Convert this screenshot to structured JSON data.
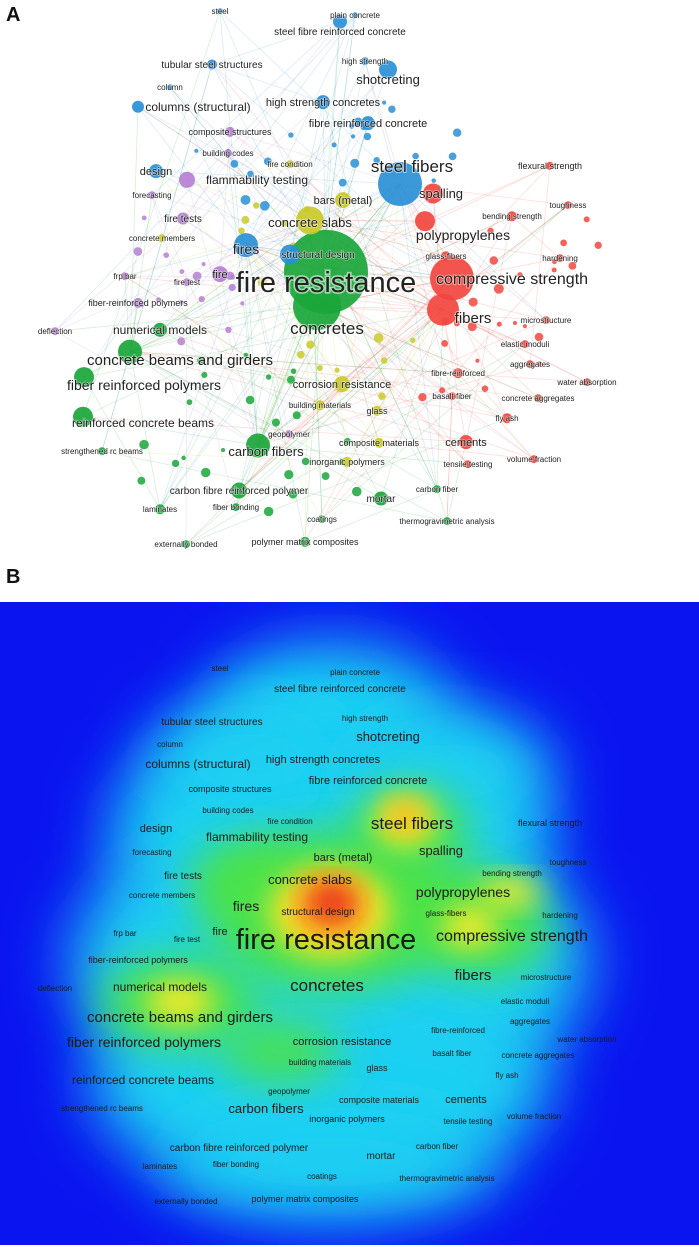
{
  "panels": {
    "a": "A",
    "b": "B"
  },
  "colors": {
    "blue": "#2a8fd6",
    "red": "#f2473f",
    "green": "#1aa63a",
    "yellow": "#c9c92a",
    "purple": "#b57fd1",
    "heat_background": "#0a14f0"
  },
  "terms": [
    {
      "label": "steel",
      "cluster": "blue"
    },
    {
      "label": "plain concrete",
      "cluster": "blue"
    },
    {
      "label": "steel fibre reinforced concrete",
      "cluster": "blue"
    },
    {
      "label": "tubular steel structures",
      "cluster": "blue"
    },
    {
      "label": "high strength",
      "cluster": "blue"
    },
    {
      "label": "column",
      "cluster": "blue"
    },
    {
      "label": "shotcreting",
      "cluster": "blue"
    },
    {
      "label": "columns (structural)",
      "cluster": "blue"
    },
    {
      "label": "high strength concretes",
      "cluster": "blue"
    },
    {
      "label": "fibre reinforced concrete",
      "cluster": "blue"
    },
    {
      "label": "composite structures",
      "cluster": "purple"
    },
    {
      "label": "building codes",
      "cluster": "purple"
    },
    {
      "label": "fire condition",
      "cluster": "yellow"
    },
    {
      "label": "flexural strength",
      "cluster": "red"
    },
    {
      "label": "design",
      "cluster": "blue"
    },
    {
      "label": "flammability testing",
      "cluster": "purple"
    },
    {
      "label": "steel fibers",
      "cluster": "blue"
    },
    {
      "label": "forecasting",
      "cluster": "purple"
    },
    {
      "label": "bars (metal)",
      "cluster": "yellow"
    },
    {
      "label": "spalling",
      "cluster": "red"
    },
    {
      "label": "toughness",
      "cluster": "red"
    },
    {
      "label": "fire tests",
      "cluster": "purple"
    },
    {
      "label": "bending strength",
      "cluster": "red"
    },
    {
      "label": "concrete slabs",
      "cluster": "yellow"
    },
    {
      "label": "concrete members",
      "cluster": "yellow"
    },
    {
      "label": "polypropylenes",
      "cluster": "red"
    },
    {
      "label": "fires",
      "cluster": "blue"
    },
    {
      "label": "structural design",
      "cluster": "blue"
    },
    {
      "label": "glass-fibers",
      "cluster": "red"
    },
    {
      "label": "hardening",
      "cluster": "red"
    },
    {
      "label": "frp bar",
      "cluster": "purple"
    },
    {
      "label": "fire test",
      "cluster": "purple"
    },
    {
      "label": "fire",
      "cluster": "purple"
    },
    {
      "label": "fire resistance",
      "cluster": "green"
    },
    {
      "label": "compressive strength",
      "cluster": "red"
    },
    {
      "label": "fiber-reinforced polymers",
      "cluster": "purple"
    },
    {
      "label": "fibers",
      "cluster": "red"
    },
    {
      "label": "microstructure",
      "cluster": "red"
    },
    {
      "label": "deflection",
      "cluster": "purple"
    },
    {
      "label": "numerical models",
      "cluster": "green"
    },
    {
      "label": "concretes",
      "cluster": "green"
    },
    {
      "label": "elastic moduli",
      "cluster": "red"
    },
    {
      "label": "concrete beams and girders",
      "cluster": "green"
    },
    {
      "label": "aggregates",
      "cluster": "red"
    },
    {
      "label": "fibre-reinforced",
      "cluster": "red"
    },
    {
      "label": "fiber reinforced polymers",
      "cluster": "green"
    },
    {
      "label": "corrosion resistance",
      "cluster": "yellow"
    },
    {
      "label": "water absorption",
      "cluster": "red"
    },
    {
      "label": "basalt fiber",
      "cluster": "red"
    },
    {
      "label": "concrete aggregates",
      "cluster": "red"
    },
    {
      "label": "building materials",
      "cluster": "yellow"
    },
    {
      "label": "glass",
      "cluster": "yellow"
    },
    {
      "label": "fly ash",
      "cluster": "red"
    },
    {
      "label": "reinforced concrete beams",
      "cluster": "green"
    },
    {
      "label": "composite materials",
      "cluster": "yellow"
    },
    {
      "label": "cements",
      "cluster": "red"
    },
    {
      "label": "geopolymer",
      "cluster": "purple"
    },
    {
      "label": "strengthened rc beams",
      "cluster": "green"
    },
    {
      "label": "carbon fibers",
      "cluster": "green"
    },
    {
      "label": "inorganic polymers",
      "cluster": "yellow"
    },
    {
      "label": "tensile testing",
      "cluster": "red"
    },
    {
      "label": "volume fraction",
      "cluster": "red"
    },
    {
      "label": "carbon fibre reinforced polymer",
      "cluster": "green"
    },
    {
      "label": "carbon fiber",
      "cluster": "green"
    },
    {
      "label": "laminates",
      "cluster": "green"
    },
    {
      "label": "fiber bonding",
      "cluster": "green"
    },
    {
      "label": "mortar",
      "cluster": "green"
    },
    {
      "label": "coatings",
      "cluster": "green"
    },
    {
      "label": "thermogravimetric analysis",
      "cluster": "green"
    },
    {
      "label": "externally bonded",
      "cluster": "green"
    },
    {
      "label": "polymer matrix composites",
      "cluster": "green"
    }
  ]
}
